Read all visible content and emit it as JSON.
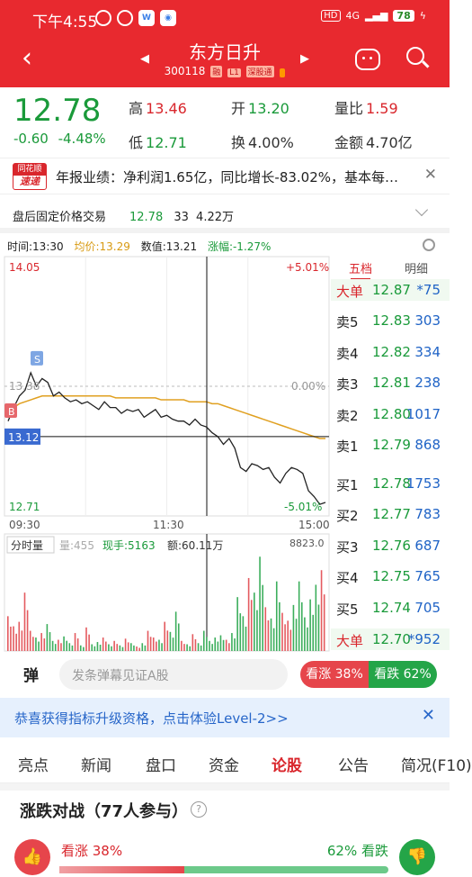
{
  "status_bar": {
    "time": "下午4:55",
    "network": "4G",
    "battery": "78",
    "hd": "HD"
  },
  "header": {
    "stock_name": "东方日升",
    "stock_code": "300118",
    "tags": [
      "融",
      "L1",
      "深股通"
    ],
    "colors": {
      "bar": "#e8292f"
    }
  },
  "quote": {
    "price": "12.78",
    "change": "-0.60",
    "change_pct": "-4.48%",
    "high_label": "高",
    "high": "13.46",
    "open_label": "开",
    "open": "13.20",
    "vol_ratio_label": "量比",
    "vol_ratio": "1.59",
    "low_label": "低",
    "low": "12.71",
    "turnover_label": "换",
    "turnover": "4.00%",
    "amount_label": "金额",
    "amount": "4.70亿"
  },
  "news": {
    "badge_top": "同花顺",
    "badge_bottom": "速递",
    "text": "年报业绩：净利润1.65亿，同比增长-83.02%，基本每…"
  },
  "after_hours": {
    "label": "盘后固定价格交易",
    "price": "12.78",
    "volume": "33",
    "amount": "4.22万"
  },
  "chart_header": {
    "time": "时间:13:30",
    "avg": "均价:13.29",
    "value": "数值:13.21",
    "change": "涨幅:-1.27%"
  },
  "chart_data": {
    "type": "line",
    "x_start": "09:30",
    "x_mid": "11:30",
    "x_end": "15:00",
    "y_top": "14.05",
    "y_top_pct": "+5.01%",
    "y_mid": "13.38",
    "y_mid_pct": "0.00%",
    "y_bottom": "12.71",
    "y_bottom_pct": "-5.01%",
    "cursor_value": "13.12",
    "marker_buy": "B",
    "marker_sell": "S",
    "ylim": [
      12.71,
      14.05
    ],
    "prev_close": 13.38,
    "series": [
      {
        "values": [
          13.2,
          13.27,
          13.33,
          13.36,
          13.45,
          13.38,
          13.42,
          13.4,
          13.33,
          13.35,
          13.32,
          13.3,
          13.31,
          13.29,
          13.3,
          13.28,
          13.26,
          13.3,
          13.27,
          13.27,
          13.24,
          13.26,
          13.25,
          13.26,
          13.22,
          13.24,
          13.26,
          13.22,
          13.23,
          13.21,
          13.2,
          13.2,
          13.18,
          13.21,
          13.18,
          13.17,
          13.14,
          13.12,
          13.08,
          13.11,
          13.06,
          12.96,
          12.94,
          12.98,
          12.97,
          12.95,
          12.96,
          12.91,
          12.88,
          12.93,
          12.96,
          12.95,
          12.93,
          12.84,
          12.81,
          12.77,
          12.78
        ]
      },
      {
        "values": [
          13.25,
          13.27,
          13.29,
          13.3,
          13.31,
          13.32,
          13.33,
          13.33,
          13.33,
          13.33,
          13.33,
          13.33,
          13.33,
          13.33,
          13.33,
          13.33,
          13.33,
          13.33,
          13.33,
          13.32,
          13.32,
          13.32,
          13.32,
          13.32,
          13.32,
          13.32,
          13.32,
          13.31,
          13.31,
          13.31,
          13.31,
          13.31,
          13.3,
          13.3,
          13.3,
          13.3,
          13.29,
          13.29,
          13.28,
          13.27,
          13.26,
          13.25,
          13.24,
          13.23,
          13.22,
          13.21,
          13.2,
          13.19,
          13.18,
          13.17,
          13.16,
          13.15,
          13.14,
          13.13,
          13.12,
          13.11,
          13.11
        ]
      }
    ],
    "volume_header": {
      "tab": "分时量",
      "vol": "量:455",
      "now": "现手:5163",
      "amt": "额:60.11万",
      "max": "8823.0"
    },
    "volume": [
      3100,
      2200,
      2600,
      5200,
      1800,
      1200,
      1600,
      2400,
      900,
      1000,
      1300,
      700,
      1600,
      500,
      2100,
      600,
      800,
      1200,
      600,
      900,
      500,
      1100,
      700,
      400,
      700,
      1800,
      1200,
      1000,
      2600,
      1700,
      3500,
      900,
      600,
      1500,
      700,
      1800,
      900,
      1200,
      1400,
      1000,
      1600,
      4800,
      3100,
      6500,
      5200,
      8400,
      3900,
      2900,
      6200,
      3400,
      2700,
      4100,
      6200,
      3000,
      4600,
      5900,
      7200
    ]
  },
  "order_book": {
    "tab_active": "五档",
    "tab_other": "明细",
    "top": {
      "label": "大单",
      "price": "12.87",
      "vol": "*75"
    },
    "asks": [
      {
        "label": "卖5",
        "price": "12.83",
        "vol": "303"
      },
      {
        "label": "卖4",
        "price": "12.82",
        "vol": "334"
      },
      {
        "label": "卖3",
        "price": "12.81",
        "vol": "238"
      },
      {
        "label": "卖2",
        "price": "12.80",
        "vol": "1017"
      },
      {
        "label": "卖1",
        "price": "12.79",
        "vol": "868"
      }
    ],
    "bids": [
      {
        "label": "买1",
        "price": "12.78",
        "vol": "1753"
      },
      {
        "label": "买2",
        "price": "12.77",
        "vol": "783"
      },
      {
        "label": "买3",
        "price": "12.76",
        "vol": "687"
      },
      {
        "label": "买4",
        "price": "12.75",
        "vol": "765"
      },
      {
        "label": "买5",
        "price": "12.74",
        "vol": "705"
      }
    ],
    "bottom": {
      "label": "大单",
      "price": "12.70",
      "vol": "*952"
    }
  },
  "danmu": {
    "icon": "弹",
    "placeholder": "发条弹幕见证A股",
    "up": "看涨 38%",
    "down": "看跌 62%"
  },
  "promo": {
    "text": "恭喜获得指标升级资格，点击体验Level-2>>"
  },
  "tabs": [
    "亮点",
    "新闻",
    "盘口",
    "资金",
    "论股",
    "公告",
    "简况(F10)"
  ],
  "battle": {
    "title": "涨跌对战（77人参与）",
    "bull": "看涨 38%",
    "bear": "62% 看跌",
    "bull_fraction": 0.38
  }
}
